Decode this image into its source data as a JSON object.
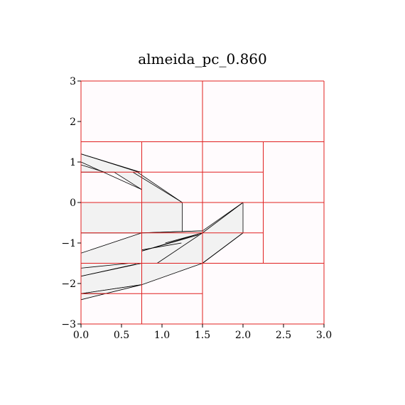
{
  "title": "almeida_pc_0.860",
  "chart_data": {
    "type": "diagram",
    "xlim": [
      0,
      3
    ],
    "ylim": [
      -3,
      3
    ],
    "x_ticks": [
      "0.0",
      "0.5",
      "1.0",
      "1.5",
      "2.0",
      "2.5",
      "3.0"
    ],
    "x_tick_values": [
      0,
      0.5,
      1,
      1.5,
      2,
      2.5,
      3
    ],
    "y_ticks": [
      "3",
      "2",
      "1",
      "0",
      "−1",
      "−2",
      "−3"
    ],
    "y_tick_values": [
      3,
      2,
      1,
      0,
      -1,
      -2,
      -3
    ],
    "colors": {
      "cell_fill": "#fffbfd",
      "grid_lines": "#e02020",
      "polygon_fill": "#f2f2f2",
      "polygon_stroke": "#000000"
    },
    "grid_segments": [
      [
        [
          0,
          3
        ],
        [
          3,
          3
        ]
      ],
      [
        [
          0,
          1.5
        ],
        [
          3,
          1.5
        ]
      ],
      [
        [
          0,
          0
        ],
        [
          3,
          0
        ]
      ],
      [
        [
          0,
          -1.5
        ],
        [
          3,
          -1.5
        ]
      ],
      [
        [
          0,
          -3
        ],
        [
          3,
          -3
        ]
      ],
      [
        [
          0,
          3
        ],
        [
          0,
          -3
        ]
      ],
      [
        [
          1.5,
          3
        ],
        [
          1.5,
          -3
        ]
      ],
      [
        [
          3,
          3
        ],
        [
          3,
          -3
        ]
      ],
      [
        [
          0.75,
          1.5
        ],
        [
          0.75,
          -3
        ]
      ],
      [
        [
          2.25,
          1.5
        ],
        [
          2.25,
          -1.5
        ]
      ],
      [
        [
          0.75,
          0.75
        ],
        [
          2.25,
          0.75
        ]
      ],
      [
        [
          0,
          0.75
        ],
        [
          0.75,
          0.75
        ]
      ],
      [
        [
          0,
          -0.75
        ],
        [
          2.25,
          -0.75
        ]
      ],
      [
        [
          0,
          -2.25
        ],
        [
          1.5,
          -2.25
        ]
      ]
    ],
    "polygons": [
      [
        [
          0,
          1.2
        ],
        [
          0.7,
          0.77
        ],
        [
          0.75,
          0.75
        ],
        [
          0.75,
          0.32
        ],
        [
          0.41,
          0.75
        ],
        [
          0,
          0.75
        ]
      ],
      [
        [
          0.75,
          0.75
        ],
        [
          0.68,
          0.77
        ],
        [
          1.25,
          0
        ],
        [
          1.25,
          -0.75
        ],
        [
          0.75,
          -0.75
        ]
      ],
      [
        [
          0,
          0
        ],
        [
          0.75,
          0
        ],
        [
          0.75,
          -0.75
        ],
        [
          0,
          -0.75
        ]
      ],
      [
        [
          0,
          -1.25
        ],
        [
          0.75,
          -0.75
        ],
        [
          0.75,
          -1.5
        ],
        [
          0,
          -1.5
        ]
      ],
      [
        [
          0.75,
          -0.75
        ],
        [
          1.5,
          -0.7
        ],
        [
          2,
          0
        ],
        [
          2,
          -0.75
        ],
        [
          1.5,
          -1.5
        ],
        [
          0.75,
          -1.5
        ]
      ],
      [
        [
          0,
          -1.5
        ],
        [
          0.75,
          -1.5
        ],
        [
          0.75,
          -2.03
        ],
        [
          0,
          -2.25
        ]
      ],
      [
        [
          0.75,
          -1.5
        ],
        [
          1.5,
          -1.5
        ],
        [
          0.75,
          -2.03
        ]
      ],
      [
        [
          0,
          -2.25
        ],
        [
          0.75,
          -2.03
        ],
        [
          0.3,
          -2.25
        ]
      ],
      [
        [
          0,
          -2.25
        ],
        [
          0.3,
          -2.25
        ],
        [
          0,
          -2.4
        ]
      ]
    ],
    "extra_lines": [
      [
        [
          0,
          1.0
        ],
        [
          0.75,
          0.32
        ]
      ],
      [
        [
          0,
          1.2
        ],
        [
          0.68,
          0.77
        ]
      ],
      [
        [
          0,
          0.93
        ],
        [
          0.29,
          0.75
        ]
      ],
      [
        [
          0.64,
          0.75
        ],
        [
          1.25,
          0
        ]
      ],
      [
        [
          0.73,
          -0.75
        ],
        [
          1.5,
          -0.7
        ]
      ],
      [
        [
          0.75,
          -1.17
        ],
        [
          1.24,
          -1.0
        ]
      ],
      [
        [
          1.04,
          -1.0
        ],
        [
          1.5,
          -0.75
        ]
      ],
      [
        [
          0,
          -1.82
        ],
        [
          0.75,
          -1.5
        ]
      ],
      [
        [
          0,
          -1.82
        ],
        [
          0.68,
          -1.52
        ]
      ],
      [
        [
          0,
          -1.62
        ],
        [
          0.6,
          -1.5
        ]
      ],
      [
        [
          0.75,
          -1.2
        ],
        [
          1.5,
          -0.75
        ]
      ],
      [
        [
          0.94,
          -1.5
        ],
        [
          1.5,
          -0.75
        ]
      ],
      [
        [
          1.5,
          -0.75
        ],
        [
          2,
          0
        ]
      ],
      [
        [
          1.5,
          -1.5
        ],
        [
          2,
          -0.75
        ]
      ],
      [
        [
          0.75,
          -1.2
        ],
        [
          1.45,
          -0.8
        ]
      ]
    ]
  }
}
